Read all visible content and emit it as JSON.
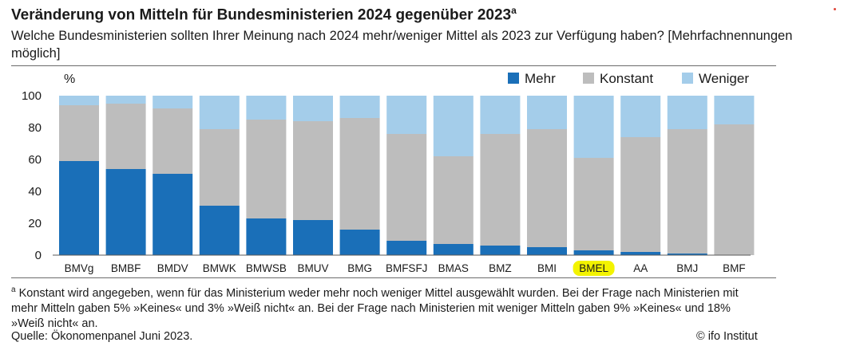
{
  "header": {
    "title": "Veränderung von Mitteln für Bundesministerien 2024 gegenüber 2023",
    "title_sup": "a",
    "subtitle": "Welche Bundesministerien sollten Ihrer Meinung nach 2024 mehr/weniger Mittel als 2023 zur Verfügung haben? [Mehrfachnennungen möglich]"
  },
  "chart_data": {
    "type": "bar",
    "stacked": true,
    "ylabel": "%",
    "ylim": [
      0,
      100
    ],
    "yticks": [
      0,
      20,
      40,
      60,
      80,
      100
    ],
    "grid": false,
    "legend_position": "top-right",
    "categories": [
      "BMVg",
      "BMBF",
      "BMDV",
      "BMWK",
      "BMWSB",
      "BMUV",
      "BMG",
      "BMFSFJ",
      "BMAS",
      "BMZ",
      "BMI",
      "BMEL",
      "AA",
      "BMJ",
      "BMF"
    ],
    "highlighted_category": "BMEL",
    "highlight_color": "#f3f300",
    "series": [
      {
        "name": "Mehr",
        "color": "#1a6fb8",
        "values": [
          59,
          54,
          51,
          31,
          23,
          22,
          16,
          9,
          7,
          6,
          5,
          3,
          2,
          1,
          0
        ]
      },
      {
        "name": "Konstant",
        "color": "#bdbdbd",
        "values": [
          35,
          41,
          41,
          48,
          62,
          62,
          70,
          67,
          55,
          70,
          74,
          58,
          72,
          78,
          82
        ]
      },
      {
        "name": "Weniger",
        "color": "#a4cdea",
        "values": [
          6,
          5,
          8,
          21,
          15,
          16,
          14,
          24,
          38,
          24,
          21,
          39,
          26,
          21,
          18
        ]
      }
    ]
  },
  "footer": {
    "footnote_sup": "a",
    "footnote": " Konstant wird angegeben, wenn für das Ministerium weder mehr noch weniger Mittel ausgewählt wurden. Bei der Frage nach Ministerien mit mehr Mitteln gaben 5%  »Keines« und 3%  »Weiß nicht« an. Bei der Frage nach Ministerien mit weniger Mitteln gaben 9%  »Keines« und 18%  »Weiß nicht« an.",
    "source": "Quelle: Ökonomenpanel Juni 2023.",
    "copyright": "© ifo Institut"
  }
}
